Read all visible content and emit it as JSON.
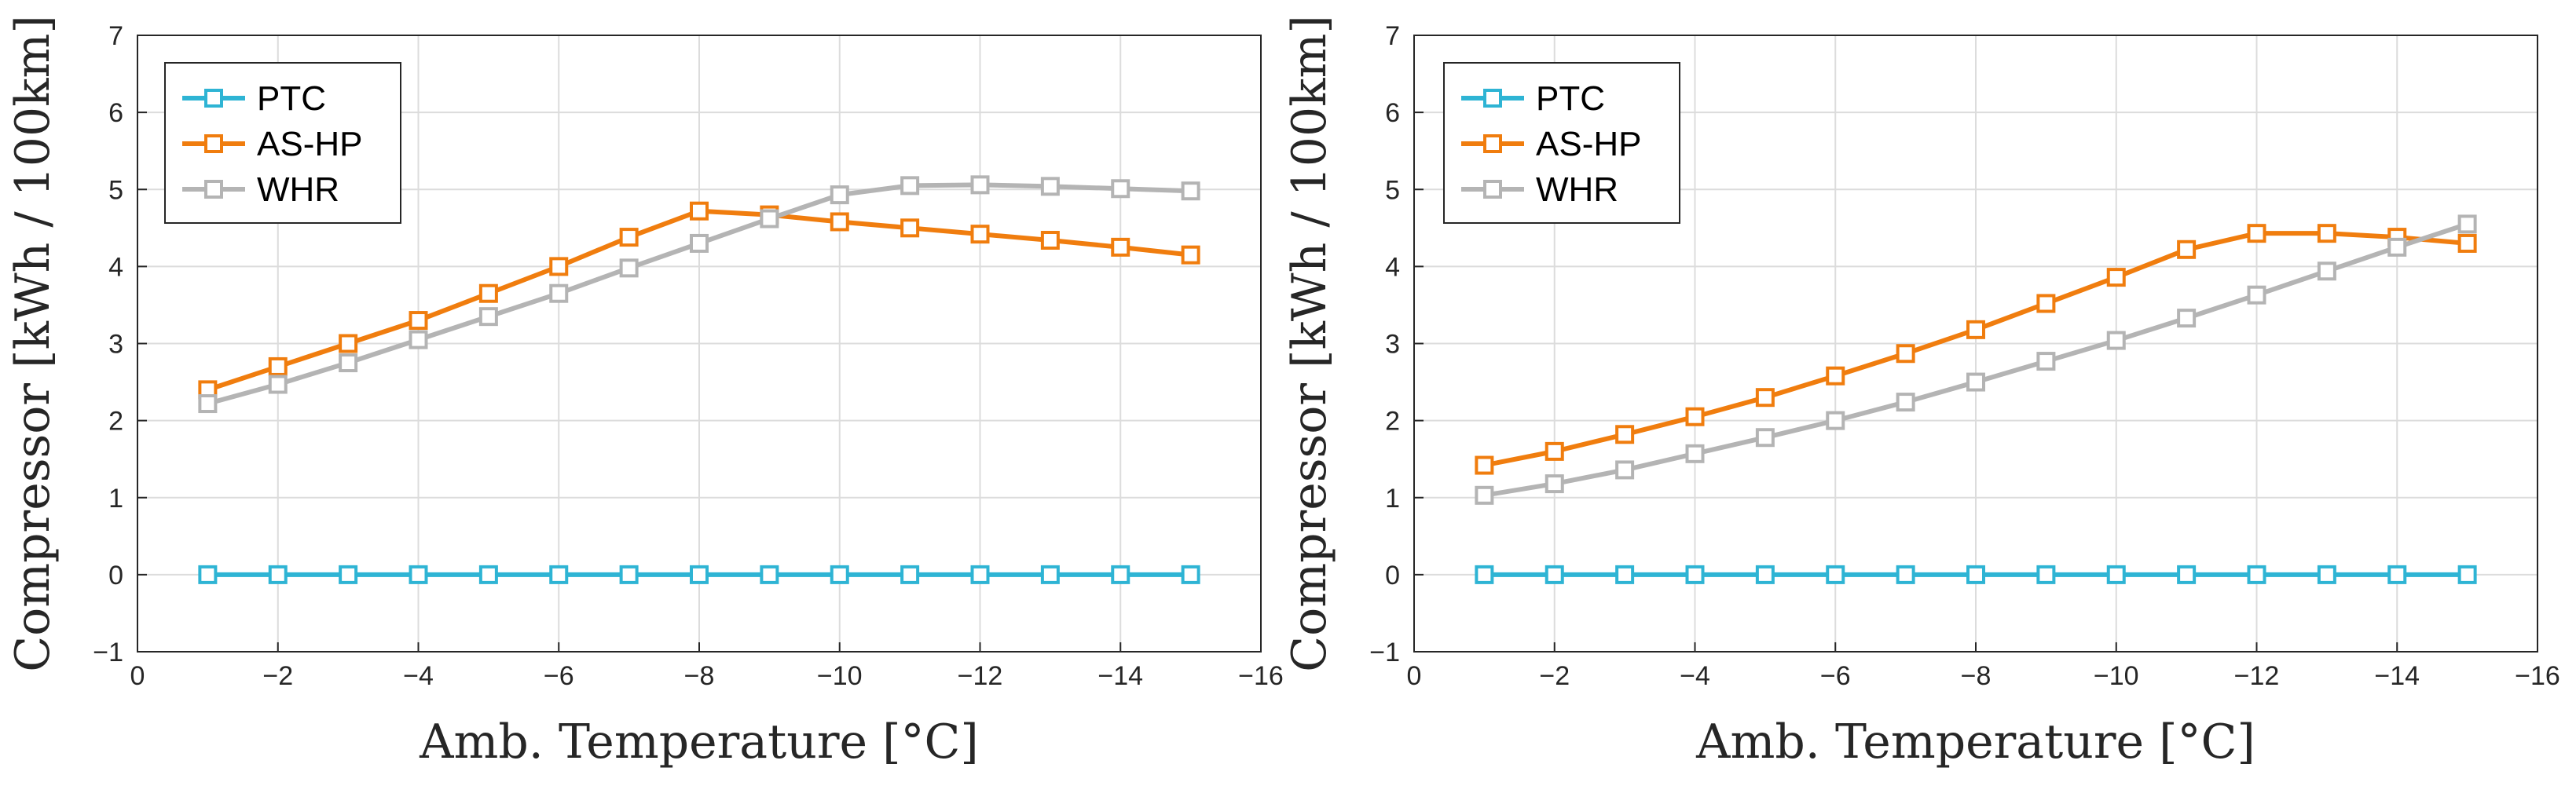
{
  "chart_data": [
    {
      "type": "line",
      "panel": "left",
      "xlabel": "Amb. Temperature [°C]",
      "ylabel": "Compressor [kWh / 100km]",
      "xlim": [
        0,
        -16
      ],
      "ylim": [
        -1,
        7
      ],
      "xticks": [
        0,
        -2,
        -4,
        -6,
        -8,
        -10,
        -12,
        -14,
        -16
      ],
      "xtick_labels": [
        "0",
        "−2",
        "−4",
        "−6",
        "−8",
        "−10",
        "−12",
        "−14",
        "−16"
      ],
      "yticks": [
        -1,
        0,
        1,
        2,
        3,
        4,
        5,
        6,
        7
      ],
      "ytick_labels": [
        "−1",
        "0",
        "1",
        "2",
        "3",
        "4",
        "5",
        "6",
        "7"
      ],
      "grid": true,
      "legend": "top-left",
      "x": [
        -1,
        -2,
        -3,
        -4,
        -5,
        -6,
        -7,
        -8,
        -9,
        -10,
        -11,
        -12,
        -13,
        -14,
        -15
      ],
      "series": [
        {
          "name": "PTC",
          "color": "#2eb4d4",
          "values": [
            0,
            0,
            0,
            0,
            0,
            0,
            0,
            0,
            0,
            0,
            0,
            0,
            0,
            0,
            0
          ]
        },
        {
          "name": "AS-HP",
          "color": "#f07d0e",
          "values": [
            2.4,
            2.7,
            3.0,
            3.3,
            3.65,
            4.0,
            4.38,
            4.72,
            4.67,
            4.58,
            4.5,
            4.42,
            4.34,
            4.25,
            4.15
          ]
        },
        {
          "name": "WHR",
          "color": "#b4b4b4",
          "values": [
            2.22,
            2.47,
            2.75,
            3.05,
            3.35,
            3.65,
            3.98,
            4.3,
            4.62,
            4.93,
            5.05,
            5.06,
            5.04,
            5.01,
            4.98
          ]
        }
      ]
    },
    {
      "type": "line",
      "panel": "right",
      "xlabel": "Amb. Temperature [°C]",
      "ylabel": "Compressor [kWh / 100km]",
      "xlim": [
        0,
        -16
      ],
      "ylim": [
        -1,
        7
      ],
      "xticks": [
        0,
        -2,
        -4,
        -6,
        -8,
        -10,
        -12,
        -14,
        -16
      ],
      "xtick_labels": [
        "0",
        "−2",
        "−4",
        "−6",
        "−8",
        "−10",
        "−12",
        "−14",
        "−16"
      ],
      "yticks": [
        -1,
        0,
        1,
        2,
        3,
        4,
        5,
        6,
        7
      ],
      "ytick_labels": [
        "−1",
        "0",
        "1",
        "2",
        "3",
        "4",
        "5",
        "6",
        "7"
      ],
      "grid": true,
      "legend": "top-left",
      "x": [
        -1,
        -2,
        -3,
        -4,
        -5,
        -6,
        -7,
        -8,
        -9,
        -10,
        -11,
        -12,
        -13,
        -14,
        -15
      ],
      "series": [
        {
          "name": "PTC",
          "color": "#2eb4d4",
          "values": [
            0,
            0,
            0,
            0,
            0,
            0,
            0,
            0,
            0,
            0,
            0,
            0,
            0,
            0,
            0
          ]
        },
        {
          "name": "AS-HP",
          "color": "#f07d0e",
          "values": [
            1.42,
            1.6,
            1.82,
            2.05,
            2.3,
            2.58,
            2.87,
            3.18,
            3.52,
            3.86,
            4.22,
            4.43,
            4.43,
            4.38,
            4.3
          ]
        },
        {
          "name": "WHR",
          "color": "#b4b4b4",
          "values": [
            1.03,
            1.18,
            1.36,
            1.57,
            1.78,
            2.0,
            2.24,
            2.5,
            2.77,
            3.04,
            3.33,
            3.63,
            3.94,
            4.25,
            4.55
          ]
        }
      ]
    }
  ]
}
